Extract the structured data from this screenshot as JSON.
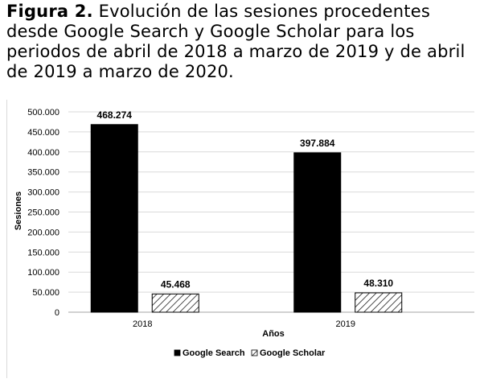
{
  "caption": {
    "label": "Figura 2.",
    "text": "Evolución de las sesiones procedentes desde Google Search y Google Scholar para los periodos de abril de 2018 a marzo de 2019 y de abril de 2019 a marzo de 2020."
  },
  "chart_data": {
    "type": "bar",
    "categories": [
      "2018",
      "2019"
    ],
    "series": [
      {
        "name": "Google Search",
        "values": [
          468274,
          397884
        ],
        "labels": [
          "468.274",
          "397.884"
        ],
        "color": "#000000",
        "pattern": "solid"
      },
      {
        "name": "Google Scholar",
        "values": [
          45468,
          48310
        ],
        "labels": [
          "45.468",
          "48.310"
        ],
        "color": "#000000",
        "pattern": "diagonal-hatch"
      }
    ],
    "xlabel": "Años",
    "ylabel": "Sesiones",
    "ylim": [
      0,
      500000
    ],
    "yticks": [
      0,
      50000,
      100000,
      150000,
      200000,
      250000,
      300000,
      350000,
      400000,
      450000,
      500000
    ],
    "ytick_labels": [
      "0",
      "50.000",
      "100.000",
      "150.000",
      "200.000",
      "250.000",
      "300.000",
      "350.000",
      "400.000",
      "450.000",
      "500.000"
    ],
    "grid": true,
    "legend": "bottom"
  }
}
